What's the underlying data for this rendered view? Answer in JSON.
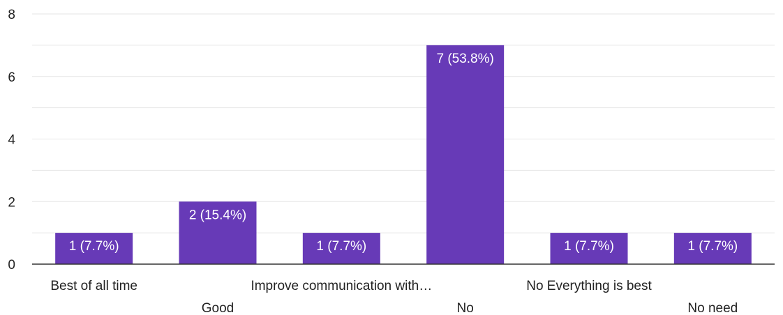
{
  "chart_data": {
    "type": "bar",
    "categories": [
      "Best of all time",
      "Good",
      "Improve communication with…",
      "No",
      "No Everything is best",
      "No need"
    ],
    "values": [
      1,
      2,
      1,
      7,
      1,
      1
    ],
    "data_labels": [
      "1 (7.7%)",
      "2 (15.4%)",
      "1 (7.7%)",
      "7 (53.8%)",
      "1 (7.7%)",
      "1 (7.7%)"
    ],
    "y_ticks": [
      "0",
      "2",
      "4",
      "6",
      "8"
    ],
    "ylim": [
      0,
      8
    ],
    "grid": true,
    "bar_color": "#673ab7",
    "grid_color": "#e6e6e6",
    "axis_color": "#333333"
  }
}
